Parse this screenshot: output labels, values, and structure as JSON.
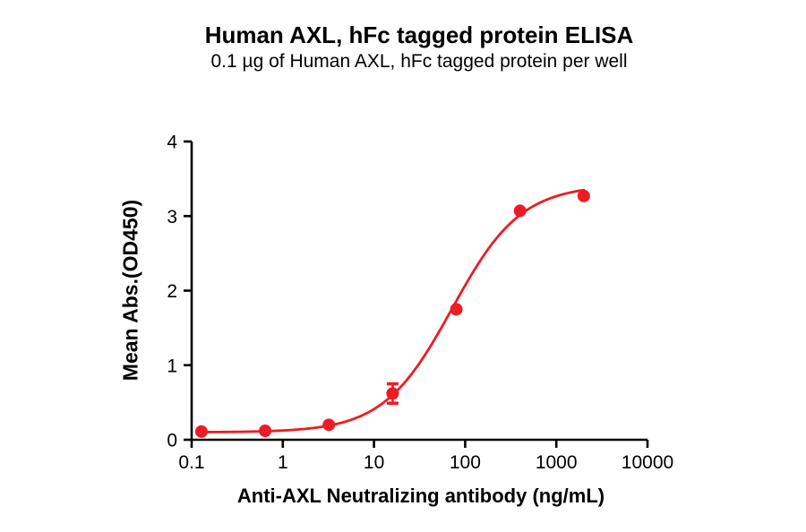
{
  "figure": {
    "background": "#ffffff",
    "text_color": "#000000"
  },
  "chart_data": {
    "type": "scatter",
    "title": "Human AXL, hFc tagged protein ELISA",
    "subtitle": "0.1 µg of Human AXL, hFc tagged protein per well",
    "xlabel": "Anti-AXL Neutralizing antibody (ng/mL)",
    "ylabel": "Mean Abs.(OD450)",
    "x_scale": "log10",
    "xlim": [
      0.1,
      10000
    ],
    "ylim": [
      0,
      4
    ],
    "x_ticks": [
      0.1,
      1,
      10,
      100,
      1000,
      10000
    ],
    "x_tick_labels": [
      "0.1",
      "1",
      "10",
      "100",
      "1000",
      "10000"
    ],
    "y_ticks": [
      0,
      1,
      2,
      3,
      4
    ],
    "y_tick_labels": [
      "0",
      "1",
      "2",
      "3",
      "4"
    ],
    "grid": false,
    "legend": "none",
    "axis_color": "#000000",
    "series": [
      {
        "name": "Anti-AXL Neutralizing antibody",
        "color": "#ED1C24",
        "marker": "circle",
        "points": [
          {
            "x": 0.128,
            "y": 0.11
          },
          {
            "x": 0.64,
            "y": 0.12
          },
          {
            "x": 3.2,
            "y": 0.2
          },
          {
            "x": 16,
            "y": 0.62,
            "error": 0.13
          },
          {
            "x": 80,
            "y": 1.75
          },
          {
            "x": 400,
            "y": 3.07
          },
          {
            "x": 2000,
            "y": 3.27
          }
        ],
        "fit": {
          "model": "4PL",
          "bottom": 0.1,
          "top": 3.42,
          "ec50": 72,
          "hill": 1.15,
          "x_from": 0.128,
          "x_to": 2000
        }
      }
    ]
  }
}
